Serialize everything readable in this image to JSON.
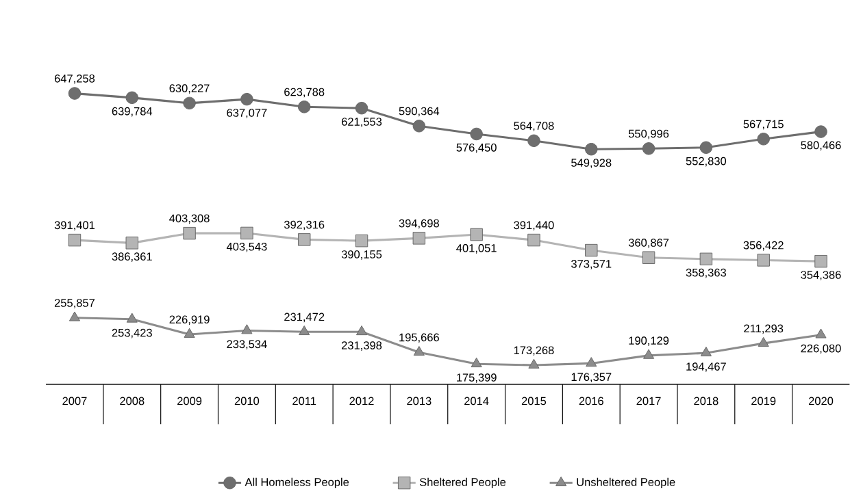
{
  "chart_data": {
    "type": "line",
    "categories": [
      "2007",
      "2008",
      "2009",
      "2010",
      "2011",
      "2012",
      "2013",
      "2014",
      "2015",
      "2016",
      "2017",
      "2018",
      "2019",
      "2020"
    ],
    "series": [
      {
        "name": "All Homeless People",
        "color": "#6e6e6e",
        "marker": "circle",
        "values": [
          647258,
          639784,
          630227,
          637077,
          623788,
          621553,
          590364,
          576450,
          564708,
          549928,
          550996,
          552830,
          567715,
          580466
        ],
        "value_labels": [
          "647,258",
          "639,784",
          "630,227",
          "637,077",
          "623,788",
          "621,553",
          "590,364",
          "576,450",
          "564,708",
          "549,928",
          "550,996",
          "552,830",
          "567,715",
          "580,466"
        ]
      },
      {
        "name": "Sheltered People",
        "color": "#b4b4b4",
        "marker": "square",
        "values": [
          391401,
          386361,
          403308,
          403543,
          392316,
          390155,
          394698,
          401051,
          391440,
          373571,
          360867,
          358363,
          356422,
          354386
        ],
        "value_labels": [
          "391,401",
          "386,361",
          "403,308",
          "403,543",
          "392,316",
          "390,155",
          "394,698",
          "401,051",
          "391,440",
          "373,571",
          "360,867",
          "358,363",
          "356,422",
          "354,386"
        ]
      },
      {
        "name": "Unsheltered People",
        "color": "#8c8c8c",
        "marker": "triangle",
        "values": [
          255857,
          253423,
          226919,
          233534,
          231472,
          231398,
          195666,
          175399,
          173268,
          176357,
          190129,
          194467,
          211293,
          226080
        ],
        "value_labels": [
          "255,857",
          "253,423",
          "226,919",
          "233,534",
          "231,472",
          "231,398",
          "195,666",
          "175,399",
          "173,268",
          "176,357",
          "190,129",
          "194,467",
          "211,293",
          "226,080"
        ]
      }
    ],
    "legend": "bottom"
  }
}
